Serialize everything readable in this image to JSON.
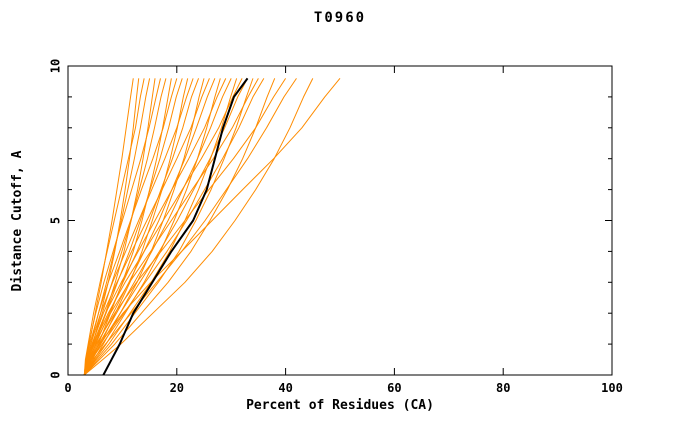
{
  "title": "T0960",
  "chart_data": {
    "type": "line",
    "title": "T0960",
    "xlabel": "Percent of Residues (CA)",
    "ylabel": "Distance Cutoff, A",
    "xlim": [
      0,
      100
    ],
    "ylim": [
      0,
      10
    ],
    "x_ticks": [
      0,
      20,
      40,
      60,
      80,
      100
    ],
    "y_ticks": [
      0,
      5,
      10
    ],
    "y_minor_step": 1,
    "grid": false,
    "legend": "none",
    "colors": {
      "model_lines": "#ff8c00",
      "reference_line": "#000000",
      "axis": "#000000",
      "background": "#ffffff"
    },
    "y_grid": [
      0,
      0.5,
      1,
      2,
      3,
      4,
      5,
      6,
      7,
      8,
      9,
      9.6
    ],
    "series_black": [
      6.5,
      8.0,
      9.5,
      12.0,
      15.5,
      19.0,
      23.0,
      25.5,
      27.0,
      28.5,
      30.5,
      33.0
    ],
    "series_orange": [
      [
        3.0,
        3.4,
        3.9,
        5.0,
        6.1,
        7.1,
        8.1,
        9.0,
        9.9,
        10.7,
        11.5,
        12.0
      ],
      [
        3.0,
        3.8,
        4.6,
        6.0,
        7.4,
        8.6,
        9.6,
        10.5,
        11.3,
        12.0,
        12.6,
        13.0
      ],
      [
        3.0,
        3.2,
        3.7,
        4.7,
        5.9,
        7.2,
        8.5,
        9.8,
        11.1,
        12.4,
        13.3,
        14.0
      ],
      [
        3.0,
        3.5,
        4.2,
        5.6,
        7.1,
        8.5,
        9.8,
        11.0,
        12.2,
        13.3,
        14.3,
        15.0
      ],
      [
        3.0,
        4.0,
        5.1,
        6.9,
        8.7,
        10.3,
        11.6,
        12.8,
        13.8,
        14.7,
        15.5,
        16.0
      ],
      [
        3.0,
        3.3,
        3.8,
        5.1,
        6.6,
        8.3,
        10.0,
        11.7,
        13.4,
        14.9,
        16.2,
        17.0
      ],
      [
        3.0,
        3.6,
        4.5,
        6.3,
        8.1,
        9.9,
        11.6,
        13.1,
        14.6,
        15.9,
        17.1,
        18.0
      ],
      [
        3.0,
        4.3,
        5.6,
        7.8,
        10.0,
        12.0,
        13.6,
        15.0,
        16.3,
        17.4,
        18.4,
        19.0
      ],
      [
        3.0,
        3.3,
        4.0,
        5.6,
        7.4,
        9.5,
        11.5,
        13.5,
        15.6,
        17.5,
        19.0,
        20.0
      ],
      [
        3.0,
        3.7,
        4.8,
        7.0,
        9.1,
        11.3,
        13.3,
        15.1,
        16.9,
        18.5,
        19.9,
        21.0
      ],
      [
        3.0,
        4.5,
        6.0,
        8.7,
        11.4,
        13.6,
        15.5,
        17.3,
        18.8,
        20.1,
        21.2,
        22.0
      ],
      [
        3.0,
        3.4,
        4.2,
        6.0,
        8.2,
        10.6,
        13.0,
        15.4,
        17.8,
        20.0,
        21.8,
        23.0
      ],
      [
        3.0,
        3.8,
        5.1,
        7.6,
        10.1,
        12.7,
        15.0,
        17.1,
        19.2,
        21.1,
        22.7,
        24.0
      ],
      [
        3.0,
        4.8,
        6.5,
        9.6,
        12.7,
        15.3,
        17.5,
        19.5,
        21.3,
        22.8,
        24.1,
        25.0
      ],
      [
        3.0,
        3.5,
        4.4,
        6.5,
        9.0,
        11.7,
        14.5,
        17.3,
        20.0,
        22.6,
        24.6,
        26.0
      ],
      [
        3.0,
        4.0,
        5.4,
        8.3,
        11.2,
        14.0,
        16.7,
        19.1,
        21.5,
        23.6,
        25.6,
        27.0
      ],
      [
        3.0,
        5.0,
        7.0,
        10.5,
        14.0,
        17.0,
        19.5,
        21.8,
        23.8,
        25.5,
        27.0,
        28.0
      ],
      [
        3.0,
        3.5,
        4.6,
        6.9,
        9.8,
        12.9,
        16.0,
        19.1,
        22.2,
        25.1,
        27.4,
        29.0
      ],
      [
        3.0,
        4.1,
        5.7,
        8.9,
        12.2,
        15.4,
        18.4,
        21.1,
        23.8,
        26.2,
        28.4,
        30.0
      ],
      [
        3.0,
        5.2,
        7.5,
        11.4,
        15.3,
        18.7,
        21.5,
        24.0,
        26.2,
        28.2,
        29.9,
        31.0
      ],
      [
        3.0,
        3.6,
        4.7,
        7.4,
        10.5,
        14.0,
        17.5,
        21.0,
        24.5,
        27.7,
        30.3,
        32.0
      ],
      [
        3.0,
        4.2,
        6.0,
        9.6,
        13.2,
        16.8,
        20.1,
        23.1,
        26.1,
        28.8,
        31.2,
        33.0
      ],
      [
        3.0,
        5.5,
        8.0,
        12.3,
        16.6,
        20.4,
        23.5,
        26.3,
        28.7,
        30.9,
        32.8,
        34.0
      ],
      [
        3.0,
        3.6,
        4.9,
        7.8,
        11.3,
        15.2,
        19.0,
        22.8,
        26.7,
        30.2,
        33.1,
        35.0
      ],
      [
        3.0,
        4.3,
        6.3,
        10.3,
        14.2,
        18.2,
        21.8,
        25.1,
        28.4,
        31.4,
        34.0,
        36.0
      ],
      [
        3.0,
        5.8,
        8.6,
        13.5,
        18.4,
        22.6,
        26.1,
        29.3,
        32.1,
        34.5,
        36.6,
        38.0
      ],
      [
        3.0,
        3.7,
        5.2,
        8.6,
        12.6,
        17.1,
        21.5,
        25.9,
        30.4,
        34.5,
        37.8,
        40.0
      ],
      [
        3.0,
        4.6,
        6.9,
        11.6,
        16.3,
        20.9,
        25.2,
        29.1,
        33.0,
        36.5,
        39.7,
        42.0
      ],
      [
        3.0,
        6.4,
        9.7,
        15.6,
        21.5,
        26.5,
        30.7,
        34.5,
        37.9,
        40.8,
        43.3,
        45.0
      ],
      [
        3.0,
        3.9,
        5.8,
        10.1,
        15.2,
        20.9,
        26.5,
        32.1,
        37.8,
        43.0,
        47.2,
        50.0
      ]
    ]
  }
}
